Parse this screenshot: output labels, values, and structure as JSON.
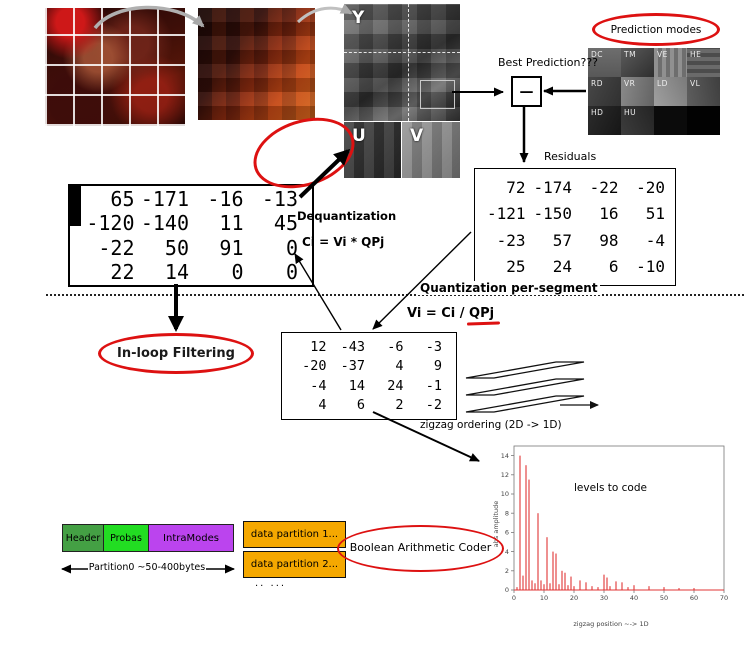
{
  "planes": {
    "y": "Y",
    "u": "U",
    "v": "V"
  },
  "prediction": {
    "ellipse_label": "Prediction modes",
    "best_label": "Best Prediction???",
    "minus_sign": "—",
    "modes": [
      "DC",
      "TM",
      "VE",
      "HE",
      "RD",
      "VR",
      "LD",
      "VL",
      "HD",
      "HU"
    ]
  },
  "residuals": {
    "label": "Residuals",
    "rows": [
      [
        72,
        -174,
        -22,
        -20
      ],
      [
        -121,
        -150,
        16,
        51
      ],
      [
        -23,
        57,
        98,
        -4
      ],
      [
        25,
        24,
        6,
        -10
      ]
    ]
  },
  "reconstructed": {
    "rows": [
      [
        65,
        -171,
        -16,
        -13
      ],
      [
        -120,
        -140,
        11,
        45
      ],
      [
        -22,
        50,
        91,
        0
      ],
      [
        22,
        14,
        0,
        0
      ]
    ]
  },
  "quantized": {
    "rows": [
      [
        12,
        -43,
        -6,
        -3
      ],
      [
        -20,
        -37,
        4,
        9
      ],
      [
        -4,
        14,
        24,
        -1
      ],
      [
        4,
        6,
        2,
        -2
      ]
    ]
  },
  "formulas": {
    "dequantization_title": "Dequantization",
    "dequantization": "Ci = Vi * QPj",
    "quantization_title": "Quantization per-segment",
    "quantization_prefix": "Vi = Ci / ",
    "quantization_qp": "QPj"
  },
  "inloop_label": "In-loop Filtering",
  "zigzag_label": "zigzag ordering  (2D -> 1D)",
  "bitstream": {
    "header": "Header",
    "probas": "Probas",
    "intra_modes": "IntraModes",
    "partition0": "Partition0 ~50-400bytes",
    "data_partition_1": "data partition 1...",
    "data_partition_2": "data partition 2...",
    "more": "..  ...",
    "coder": "Boolean Arithmetic Coder"
  },
  "colors": {
    "accent_red": "#dd1111",
    "header_green": "#44a044",
    "probas_green": "#22dd22",
    "intra_purple": "#bb44ee",
    "partition_orange": "#f5a800",
    "chart_red": "#e03535"
  },
  "chart_data": {
    "type": "bar",
    "annotation": "levels to code",
    "xlabel": "zigzag position  ~-> 1D",
    "ylabel": "abs amplitude",
    "color": "#e03535",
    "xlim": [
      0,
      70
    ],
    "ylim": [
      0,
      15
    ],
    "xticks": [
      0,
      10,
      20,
      30,
      40,
      50,
      60,
      70
    ],
    "yticks": [
      0,
      2,
      4,
      6,
      8,
      10,
      12,
      14
    ],
    "x": [
      1,
      2,
      3,
      4,
      5,
      6,
      7,
      8,
      9,
      10,
      11,
      12,
      13,
      14,
      15,
      16,
      17,
      18,
      19,
      20,
      22,
      24,
      26,
      28,
      30,
      31,
      32,
      34,
      36,
      38,
      40,
      45,
      50,
      55,
      60
    ],
    "values": [
      0.3,
      14,
      1.5,
      13,
      11.5,
      1,
      0.7,
      8,
      1,
      0.6,
      5.5,
      0.7,
      4,
      3.8,
      0.6,
      2,
      1.8,
      0.5,
      1.4,
      0.4,
      1,
      0.8,
      0.4,
      0.3,
      1.6,
      1.3,
      0.4,
      0.9,
      0.8,
      0.3,
      0.5,
      0.4,
      0.3,
      0.2,
      0.2
    ]
  }
}
